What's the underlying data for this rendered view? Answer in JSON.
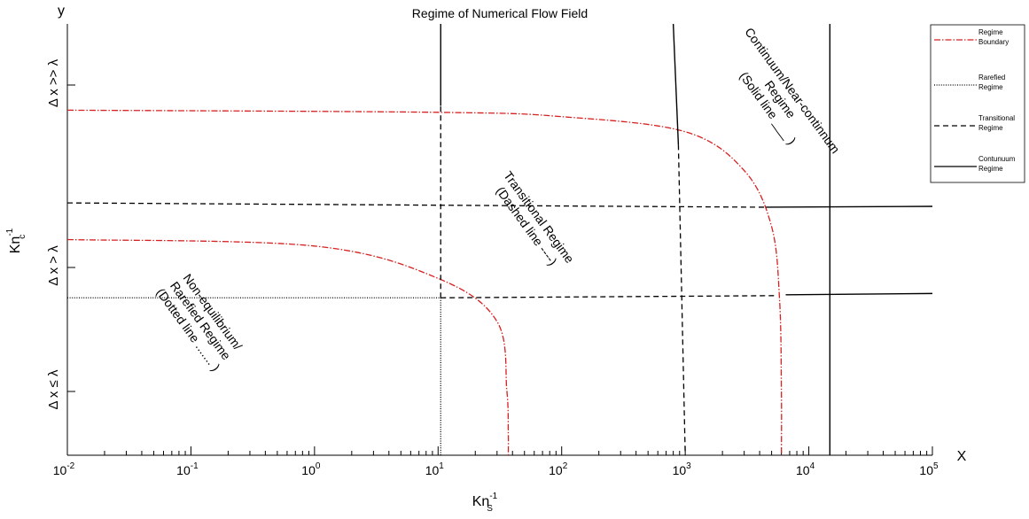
{
  "chart_data": {
    "type": "line",
    "title": "Regime of Numerical Flow Field",
    "xlabel": "Kn",
    "xlabel_sub": "S",
    "xlabel_sup": "-1",
    "ylabel": "Kn",
    "ylabel_sub": "c",
    "ylabel_sup": "-1",
    "x_axis_corner_label": "X",
    "y_axis_corner_label": "y",
    "xscale": "log",
    "xlim": [
      0.01,
      100000
    ],
    "x_ticks": [
      {
        "base": "10",
        "exp": "-2"
      },
      {
        "base": "10",
        "exp": "-1"
      },
      {
        "base": "10",
        "exp": "0"
      },
      {
        "base": "10",
        "exp": "1"
      },
      {
        "base": "10",
        "exp": "2"
      },
      {
        "base": "10",
        "exp": "3"
      },
      {
        "base": "10",
        "exp": "4"
      },
      {
        "base": "10",
        "exp": "5"
      }
    ],
    "y_ticks": [
      "Δ x ≤ λ",
      "Δ x > λ",
      "Δ x >> λ"
    ],
    "annotations": [
      {
        "lines": [
          "Non-equilibrium/",
          "Rarefied Regime",
          "(Dotted line ....... )"
        ]
      },
      {
        "lines": [
          "Transitional Regime",
          "(Dashed line ----)"
        ]
      },
      {
        "lines": [
          "Continuum/Near-continnum",
          "Regime",
          "(Solid line ___ )"
        ]
      }
    ],
    "legend": {
      "placement": "top-right",
      "entries": [
        {
          "name": "Regime Boundary",
          "lines": [
            "Regime",
            "Boundary"
          ],
          "style": "dashdot",
          "color": "#d62020"
        },
        {
          "name": "Rarefied Regime",
          "lines": [
            "Rarefied",
            "Regime"
          ],
          "style": "dotted",
          "color": "#000000"
        },
        {
          "name": "Transitional Regime",
          "lines": [
            "Transitional",
            "Regime"
          ],
          "style": "dashed",
          "color": "#000000"
        },
        {
          "name": "Contunuum Regime",
          "lines": [
            "Contunuum",
            "Regime"
          ],
          "style": "solid",
          "color": "#000000"
        }
      ]
    },
    "series": [
      {
        "name": "Regime Boundary",
        "style": "dashdot",
        "color": "#d62020",
        "x": [
          0.01,
          1,
          10,
          30,
          36,
          37,
          37
        ],
        "y_frac": [
          0.5,
          0.485,
          0.41,
          0.31,
          0.15,
          0.05,
          0.0
        ]
      },
      {
        "name": "Regime Boundary",
        "style": "dashdot",
        "color": "#d62020",
        "x": [
          0.01,
          10,
          100,
          1000,
          3000,
          5000,
          5800,
          6000,
          6000
        ],
        "y_frac": [
          0.8,
          0.795,
          0.785,
          0.75,
          0.66,
          0.53,
          0.36,
          0.15,
          0.0
        ]
      },
      {
        "name": "Rarefied Regime",
        "style": "dotted",
        "color": "#000000",
        "x": [
          0.01,
          10.5
        ],
        "y_frac": [
          0.365,
          0.365
        ]
      },
      {
        "name": "Rarefied Regime",
        "style": "dotted",
        "color": "#000000",
        "x": [
          10.5,
          10.5
        ],
        "y_frac": [
          0.365,
          0.0
        ]
      },
      {
        "name": "Transitional Regime",
        "style": "dashed",
        "color": "#000000",
        "x": [
          0.01,
          4500
        ],
        "y_frac": [
          0.585,
          0.575
        ]
      },
      {
        "name": "Transitional Regime",
        "style": "dashed",
        "color": "#000000",
        "x": [
          10.5,
          5500
        ],
        "y_frac": [
          0.365,
          0.37
        ]
      },
      {
        "name": "Transitional Regime",
        "style": "dashed",
        "color": "#000000",
        "x": [
          10.5,
          10.5
        ],
        "y_frac": [
          0.365,
          0.81
        ]
      },
      {
        "name": "Transitional Regime",
        "style": "dashed",
        "color": "#000000",
        "x": [
          880,
          1000
        ],
        "y_frac": [
          0.72,
          0.0
        ]
      },
      {
        "name": "Contunuum Regime",
        "style": "solid",
        "color": "#000000",
        "x": [
          10.5,
          10.5
        ],
        "y_frac": [
          0.81,
          1.0
        ]
      },
      {
        "name": "Contunuum Regime",
        "style": "solid",
        "color": "#000000",
        "x": [
          800,
          880
        ],
        "y_frac": [
          1.0,
          0.72
        ]
      },
      {
        "name": "Contunuum Regime",
        "style": "solid",
        "color": "#000000",
        "x": [
          14800,
          14800
        ],
        "y_frac": [
          1.0,
          0.0
        ]
      },
      {
        "name": "Contunuum Regime",
        "style": "solid",
        "color": "#000000",
        "x": [
          4500,
          100000
        ],
        "y_frac": [
          0.575,
          0.577
        ]
      },
      {
        "name": "Contunuum Regime",
        "style": "solid",
        "color": "#000000",
        "x": [
          6500,
          100000
        ],
        "y_frac": [
          0.372,
          0.375
        ]
      }
    ]
  }
}
